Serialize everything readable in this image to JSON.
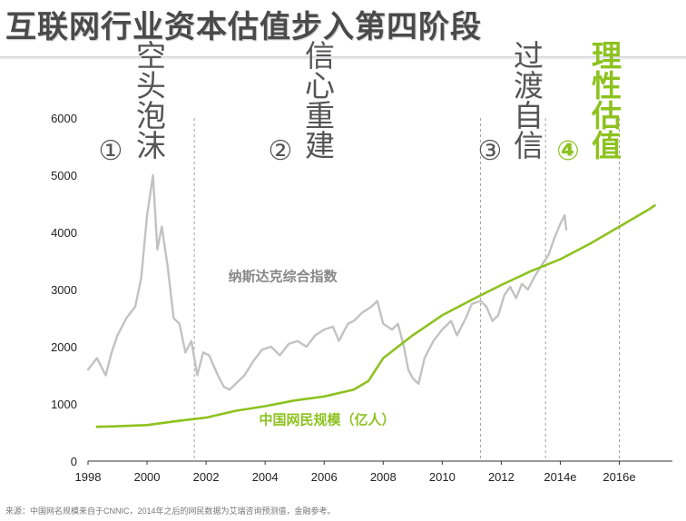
{
  "title": "互联网行业资本估值步入第四阶段",
  "source_note": "来源：中国网名规模来自于CNNIC，2014年之后的网民数据为艾瑞咨询预测值，金融参考。",
  "stages": [
    {
      "number": "①",
      "label": "空头泡沫",
      "color": "#555555"
    },
    {
      "number": "②",
      "label": "信心重建",
      "color": "#555555"
    },
    {
      "number": "③",
      "label": "过渡自信",
      "color": "#555555"
    },
    {
      "number": "④",
      "label": "理性估值",
      "color": "#8dc21f"
    }
  ],
  "chart_data": {
    "type": "line",
    "title": "互联网行业资本估值步入第四阶段",
    "xlabel": "",
    "ylabel": "",
    "xlim": [
      1998,
      2017.5
    ],
    "ylim": [
      0,
      6000
    ],
    "x_ticks": [
      1998,
      2000,
      2002,
      2004,
      2006,
      2008,
      2010,
      2012,
      2014,
      2016
    ],
    "x_tick_labels": [
      "1998",
      "2000",
      "2002",
      "2004",
      "2006",
      "2008",
      "2010",
      "2012",
      "2014e",
      "2016e"
    ],
    "y_ticks": [
      0,
      1000,
      2000,
      3000,
      4000,
      5000,
      6000
    ],
    "y_tick_labels": [
      "0",
      "1000",
      "2000",
      "3000",
      "4000",
      "5000",
      "6000"
    ],
    "stage_dividers": [
      2001.6,
      2011.3,
      2013.5,
      2016
    ],
    "series": [
      {
        "name": "纳斯达克综合指数",
        "color": "#c2c2c2",
        "points": [
          [
            1998.0,
            1600
          ],
          [
            1998.3,
            1800
          ],
          [
            1998.6,
            1500
          ],
          [
            1998.8,
            1900
          ],
          [
            1999.0,
            2200
          ],
          [
            1999.3,
            2500
          ],
          [
            1999.6,
            2700
          ],
          [
            1999.8,
            3200
          ],
          [
            2000.0,
            4300
          ],
          [
            2000.2,
            5000
          ],
          [
            2000.35,
            3700
          ],
          [
            2000.5,
            4100
          ],
          [
            2000.7,
            3400
          ],
          [
            2000.9,
            2500
          ],
          [
            2001.1,
            2400
          ],
          [
            2001.3,
            1900
          ],
          [
            2001.5,
            2100
          ],
          [
            2001.7,
            1500
          ],
          [
            2001.9,
            1900
          ],
          [
            2002.1,
            1850
          ],
          [
            2002.4,
            1500
          ],
          [
            2002.6,
            1300
          ],
          [
            2002.8,
            1250
          ],
          [
            2003.0,
            1350
          ],
          [
            2003.3,
            1500
          ],
          [
            2003.6,
            1750
          ],
          [
            2003.9,
            1950
          ],
          [
            2004.2,
            2000
          ],
          [
            2004.5,
            1850
          ],
          [
            2004.8,
            2050
          ],
          [
            2005.1,
            2100
          ],
          [
            2005.4,
            2000
          ],
          [
            2005.7,
            2200
          ],
          [
            2006.0,
            2300
          ],
          [
            2006.3,
            2350
          ],
          [
            2006.5,
            2100
          ],
          [
            2006.8,
            2400
          ],
          [
            2007.0,
            2450
          ],
          [
            2007.3,
            2600
          ],
          [
            2007.6,
            2700
          ],
          [
            2007.8,
            2800
          ],
          [
            2008.0,
            2400
          ],
          [
            2008.3,
            2300
          ],
          [
            2008.5,
            2400
          ],
          [
            2008.7,
            2000
          ],
          [
            2008.85,
            1600
          ],
          [
            2009.0,
            1450
          ],
          [
            2009.2,
            1350
          ],
          [
            2009.4,
            1800
          ],
          [
            2009.7,
            2100
          ],
          [
            2010.0,
            2300
          ],
          [
            2010.3,
            2450
          ],
          [
            2010.5,
            2200
          ],
          [
            2010.8,
            2500
          ],
          [
            2011.0,
            2750
          ],
          [
            2011.3,
            2800
          ],
          [
            2011.5,
            2700
          ],
          [
            2011.7,
            2450
          ],
          [
            2011.9,
            2550
          ],
          [
            2012.1,
            2900
          ],
          [
            2012.3,
            3050
          ],
          [
            2012.5,
            2850
          ],
          [
            2012.7,
            3100
          ],
          [
            2012.9,
            3000
          ],
          [
            2013.1,
            3200
          ],
          [
            2013.4,
            3450
          ],
          [
            2013.6,
            3600
          ],
          [
            2013.8,
            3900
          ],
          [
            2014.0,
            4150
          ],
          [
            2014.15,
            4300
          ],
          [
            2014.2,
            4050
          ]
        ]
      },
      {
        "name": "中国网民规模（亿人）",
        "color": "#8dc21f",
        "points": [
          [
            1998.3,
            600
          ],
          [
            1999.0,
            610
          ],
          [
            2000.0,
            630
          ],
          [
            2001.0,
            700
          ],
          [
            2002.0,
            760
          ],
          [
            2003.0,
            880
          ],
          [
            2004.0,
            960
          ],
          [
            2005.0,
            1060
          ],
          [
            2006.0,
            1130
          ],
          [
            2007.0,
            1250
          ],
          [
            2007.5,
            1400
          ],
          [
            2008.0,
            1800
          ],
          [
            2009.0,
            2200
          ],
          [
            2010.0,
            2550
          ],
          [
            2011.0,
            2820
          ],
          [
            2012.0,
            3080
          ],
          [
            2013.0,
            3320
          ],
          [
            2014.0,
            3530
          ],
          [
            2015.0,
            3800
          ],
          [
            2016.0,
            4100
          ],
          [
            2017.0,
            4400
          ],
          [
            2017.2,
            4470
          ]
        ]
      }
    ],
    "annotations": [
      {
        "text": "纳斯达克综合指数",
        "x": 2004.6,
        "y": 3150,
        "color": "#888888"
      },
      {
        "text": "中国网民规模（亿人）",
        "x": 2006.1,
        "y": 640,
        "color": "#8dc21f"
      }
    ]
  }
}
